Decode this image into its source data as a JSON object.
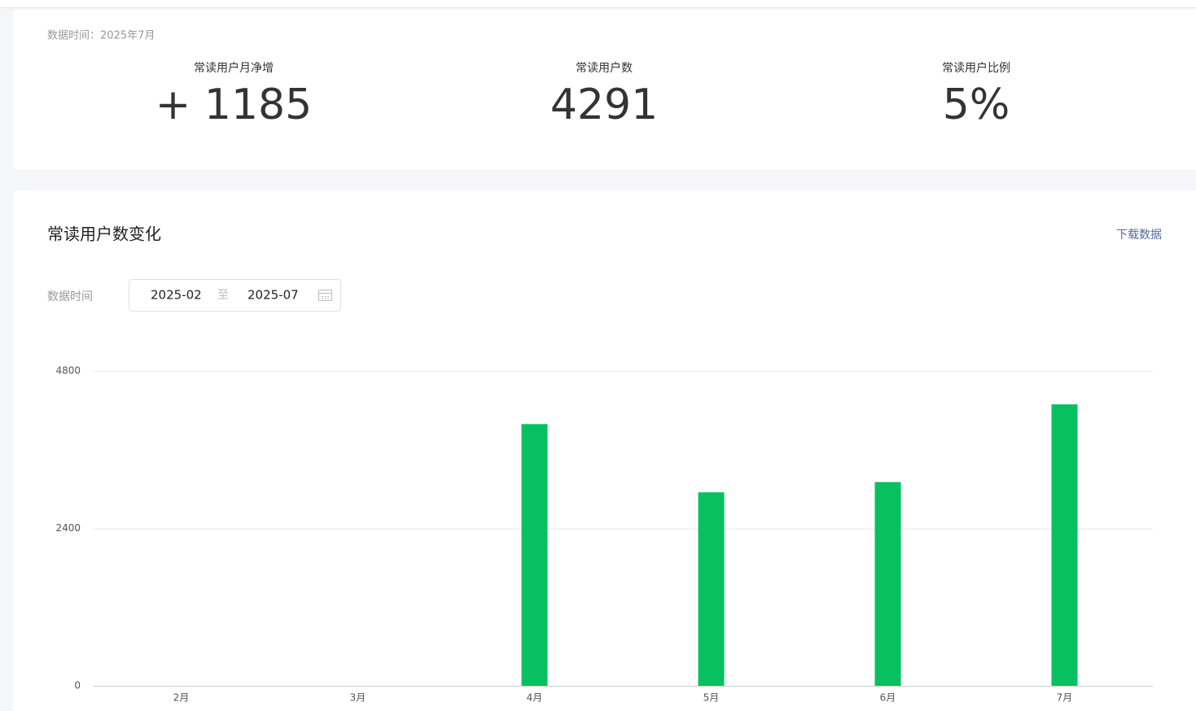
{
  "header": {
    "data_time": "数据时间：2025年7月",
    "stats": [
      {
        "label": "常读用户月净增",
        "value": "+ 1185"
      },
      {
        "label": "常读用户数",
        "value": "4291"
      },
      {
        "label": "常读用户比例",
        "value": "5%"
      }
    ]
  },
  "section": {
    "title": "常读用户数变化",
    "download": "下载数据",
    "filter_label": "数据时间",
    "start": "2025-02",
    "separator": "至",
    "end": "2025-07"
  },
  "chart_data": {
    "type": "bar",
    "categories": [
      "2月",
      "3月",
      "4月",
      "5月",
      "6月",
      "7月"
    ],
    "values": [
      0,
      0,
      3990,
      2950,
      3106,
      4291
    ],
    "color": "#07c160",
    "ylim": [
      0,
      4800
    ],
    "yticks": [
      0,
      2400,
      4800
    ],
    "grid": true
  }
}
